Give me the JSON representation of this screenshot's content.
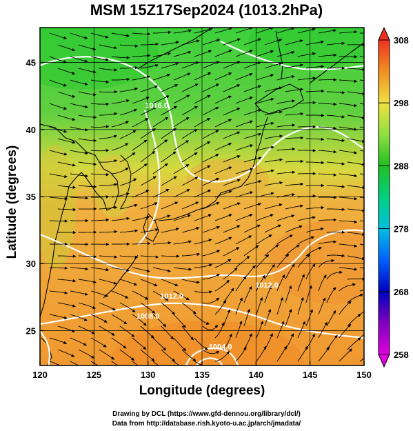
{
  "title": "MSM 15Z17Sep2024 (1013.2hPa)",
  "xlabel": "Longitude (degrees)",
  "ylabel": "Latitude  (degrees)",
  "credit_line1": "Drawing by DCL (https://www.gfd-dennou.org/library/dcl/)",
  "credit_line2": "Data from http://database.rish.kyoto-u.ac.jp/arch/jmadata/",
  "map": {
    "lon_range": [
      120,
      150
    ],
    "lat_range": [
      22.4,
      47.6
    ],
    "lon_ticks": [
      {
        "value": 120,
        "label": "120"
      },
      {
        "value": 125,
        "label": "125"
      },
      {
        "value": 130,
        "label": "130"
      },
      {
        "value": 135,
        "label": "135"
      },
      {
        "value": 140,
        "label": "140"
      },
      {
        "value": 145,
        "label": "145"
      },
      {
        "value": 150,
        "label": "150"
      }
    ],
    "lat_ticks": [
      {
        "value": 25,
        "label": "25"
      },
      {
        "value": 30,
        "label": "30"
      },
      {
        "value": 35,
        "label": "35"
      },
      {
        "value": 40,
        "label": "40"
      },
      {
        "value": 45,
        "label": "45"
      }
    ],
    "grid": true,
    "background_colors": {
      "cool": "#3ccc3c",
      "mid": "#e8e040",
      "warm": "#f0a030"
    },
    "isobar_labels": [
      {
        "text": "1016.0",
        "lon": 130.8,
        "lat": 41.6
      },
      {
        "text": "1012.0",
        "lon": 132.2,
        "lat": 27.4
      },
      {
        "text": "1008.0",
        "lon": 130.0,
        "lat": 25.9
      },
      {
        "text": "1012.0",
        "lon": 141.0,
        "lat": 28.2
      },
      {
        "text": "1004.0",
        "lon": 136.7,
        "lat": 23.6
      }
    ]
  },
  "colorbar": {
    "min": 258,
    "max": 308,
    "ticks": [
      {
        "value": 308,
        "label": "308"
      },
      {
        "value": 298,
        "label": "298"
      },
      {
        "value": 288,
        "label": "288"
      },
      {
        "value": 278,
        "label": "278"
      },
      {
        "value": 268,
        "label": "268"
      },
      {
        "value": 258,
        "label": "258"
      }
    ],
    "stops": [
      {
        "value": 258,
        "color": "#e000e0"
      },
      {
        "value": 263,
        "color": "#8000c0"
      },
      {
        "value": 268,
        "color": "#0000c0"
      },
      {
        "value": 273,
        "color": "#0060ff"
      },
      {
        "value": 278,
        "color": "#00c0e0"
      },
      {
        "value": 283,
        "color": "#00d080"
      },
      {
        "value": 288,
        "color": "#20c020"
      },
      {
        "value": 293,
        "color": "#90e040"
      },
      {
        "value": 298,
        "color": "#f0e040"
      },
      {
        "value": 303,
        "color": "#f09020"
      },
      {
        "value": 308,
        "color": "#f03020"
      }
    ]
  }
}
